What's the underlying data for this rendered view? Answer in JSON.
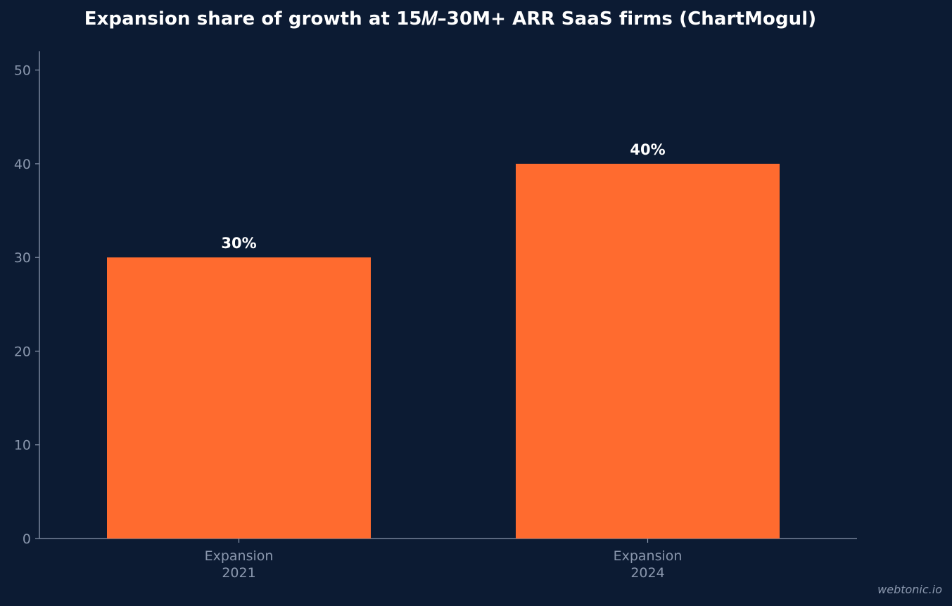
{
  "colors": {
    "background": "#0c1b33",
    "bar": "#ff6b2f",
    "axis": "#8a97ad",
    "tick_text": "#8a97ad",
    "label_text": "#ffffff"
  },
  "watermark": "webtonic.io",
  "chart_data": {
    "type": "bar",
    "title": "Expansion share of growth at $15M–30M+ ARR SaaS firms (ChartMogul)",
    "title_display": "Expansion share of growth at 15𝑀–30M+ ARR SaaS firms (ChartMogul)",
    "categories": [
      [
        "Expansion",
        "2021"
      ],
      [
        "Expansion",
        "2024"
      ]
    ],
    "values": [
      30,
      40
    ],
    "data_labels": [
      "30%",
      "40%"
    ],
    "xlabel": "",
    "ylabel": "",
    "ylim": [
      0,
      52
    ],
    "yticks": [
      0,
      10,
      20,
      30,
      40,
      50
    ],
    "grid": false,
    "legend": "none"
  }
}
